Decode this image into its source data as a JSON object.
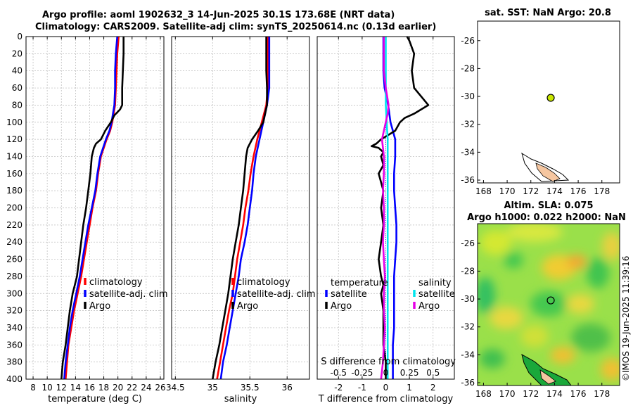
{
  "header": {
    "title_line1": "Argo profile: aoml 1902632_3 14-Jun-2025 30.1S 173.68E (NRT data)",
    "title_line2": "Climatology: CARS2009. Satellite-adj clim: synTS_20250614.nc (0.13d earlier)"
  },
  "colors": {
    "climatology": "#ff0000",
    "satellite": "#0000ff",
    "argo": "#000000",
    "sal_satellite": "#00e5ee",
    "sal_argo": "#e600e6",
    "grid": "#b8b8b8",
    "land": "#f5c6a0",
    "profile_marker": "#c8e600"
  },
  "depth_ticks": [
    0,
    20,
    40,
    60,
    80,
    100,
    120,
    140,
    160,
    180,
    200,
    220,
    240,
    260,
    280,
    300,
    320,
    340,
    360,
    380,
    400
  ],
  "chart_data": [
    {
      "type": "line",
      "id": "temperature",
      "xlabel": "temperature (deg C)",
      "ylabel": "",
      "xlim": [
        7,
        26.5
      ],
      "ylim": [
        400,
        0
      ],
      "xticks": [
        8,
        10,
        12,
        14,
        16,
        18,
        20,
        22,
        24,
        26
      ],
      "legend": [
        "climatology",
        "satellite-adj. clim",
        "Argo"
      ],
      "series": [
        {
          "name": "climatology",
          "color": "#ff0000",
          "depth": [
            0,
            20,
            40,
            60,
            80,
            100,
            110,
            120,
            140,
            160,
            180,
            200,
            220,
            240,
            260,
            280,
            300,
            320,
            340,
            360,
            380,
            400
          ],
          "values": [
            20.1,
            19.9,
            19.8,
            19.7,
            19.6,
            19.2,
            18.9,
            18.4,
            17.6,
            17.2,
            16.9,
            16.4,
            16.0,
            15.6,
            15.2,
            14.8,
            14.3,
            13.8,
            13.4,
            13.0,
            12.8,
            12.6
          ]
        },
        {
          "name": "satellite-adj. clim",
          "color": "#0000ff",
          "depth": [
            0,
            20,
            40,
            60,
            80,
            100,
            110,
            120,
            140,
            160,
            180,
            200,
            220,
            240,
            260,
            280,
            300,
            320,
            340,
            360,
            380,
            400
          ],
          "values": [
            19.9,
            19.7,
            19.6,
            19.6,
            19.5,
            19.1,
            18.8,
            18.3,
            17.5,
            17.1,
            16.8,
            16.3,
            15.8,
            15.4,
            15.0,
            14.6,
            14.1,
            13.6,
            13.2,
            12.9,
            12.6,
            12.4
          ]
        },
        {
          "name": "Argo",
          "color": "#000000",
          "depth": [
            0,
            20,
            40,
            60,
            80,
            85,
            92,
            100,
            110,
            120,
            125,
            130,
            140,
            160,
            180,
            200,
            220,
            240,
            260,
            280,
            290,
            300,
            320,
            340,
            360,
            380,
            400
          ],
          "values": [
            20.8,
            20.8,
            20.7,
            20.6,
            20.6,
            20.3,
            19.5,
            19.0,
            18.2,
            17.6,
            16.9,
            16.6,
            16.3,
            16.1,
            15.8,
            15.5,
            15.1,
            14.8,
            14.5,
            14.2,
            13.9,
            13.6,
            13.2,
            12.9,
            12.6,
            12.2,
            12.0
          ]
        }
      ]
    },
    {
      "type": "line",
      "id": "salinity",
      "xlabel": "salinity",
      "ylabel": "",
      "xlim": [
        34.45,
        36.3
      ],
      "ylim": [
        400,
        0
      ],
      "xticks": [
        34.5,
        35,
        35.5,
        36
      ],
      "xticklabels": [
        "34.5",
        "35",
        "35.5",
        "36"
      ],
      "legend": [
        "climatology",
        "satellite-adj. clim",
        "Argo"
      ],
      "series": [
        {
          "name": "climatology",
          "color": "#ff0000",
          "depth": [
            0,
            20,
            40,
            60,
            80,
            100,
            120,
            140,
            160,
            180,
            200,
            220,
            240,
            260,
            280,
            300,
            320,
            340,
            360,
            380,
            400
          ],
          "values": [
            35.74,
            35.74,
            35.74,
            35.74,
            35.72,
            35.66,
            35.6,
            35.55,
            35.51,
            35.48,
            35.44,
            35.41,
            35.37,
            35.33,
            35.3,
            35.27,
            35.22,
            35.18,
            35.14,
            35.1,
            35.06
          ]
        },
        {
          "name": "satellite-adj. clim",
          "color": "#0000ff",
          "depth": [
            0,
            20,
            40,
            60,
            80,
            100,
            120,
            140,
            160,
            180,
            200,
            220,
            240,
            260,
            280,
            300,
            320,
            340,
            360,
            380,
            400
          ],
          "values": [
            35.76,
            35.76,
            35.76,
            35.76,
            35.73,
            35.68,
            35.63,
            35.58,
            35.55,
            35.53,
            35.5,
            35.47,
            35.43,
            35.38,
            35.35,
            35.31,
            35.27,
            35.23,
            35.19,
            35.14,
            35.11
          ]
        },
        {
          "name": "Argo",
          "color": "#000000",
          "depth": [
            0,
            20,
            40,
            60,
            80,
            100,
            110,
            120,
            130,
            140,
            160,
            180,
            200,
            220,
            240,
            260,
            280,
            300,
            320,
            340,
            360,
            380,
            400
          ],
          "values": [
            35.72,
            35.72,
            35.72,
            35.73,
            35.73,
            35.68,
            35.61,
            35.53,
            35.47,
            35.45,
            35.43,
            35.41,
            35.38,
            35.35,
            35.31,
            35.27,
            35.24,
            35.21,
            35.17,
            35.13,
            35.09,
            35.04,
            35.0
          ]
        }
      ]
    },
    {
      "type": "line",
      "id": "difference",
      "xlabel": "T difference from climatology",
      "xlabel_top": "S difference from climatology",
      "xlim": [
        -2.9,
        2.9
      ],
      "ylim": [
        400,
        0
      ],
      "xticks": [
        -2,
        -1,
        0,
        1,
        2
      ],
      "s_ticks": [
        -0.5,
        -0.25,
        0,
        0.25,
        0.5
      ],
      "s_ticklabels": [
        "-0.5",
        "-0.25",
        "0",
        "0.25",
        "0.5"
      ],
      "s_scale": 4,
      "legend_left_title": "temperature",
      "legend_right_title": "salinity",
      "legend_left": [
        "satellite",
        "Argo"
      ],
      "legend_right": [
        "satellite",
        "Argo"
      ],
      "series": [
        {
          "name": "T satellite",
          "color": "#0000ff",
          "depth": [
            0,
            40,
            60,
            80,
            100,
            110,
            120,
            140,
            160,
            180,
            200,
            220,
            240,
            260,
            280,
            300,
            320,
            340,
            360,
            380,
            400
          ],
          "values": [
            -0.1,
            -0.1,
            -0.05,
            0.1,
            0.2,
            0.3,
            0.4,
            0.4,
            0.35,
            0.35,
            0.4,
            0.45,
            0.45,
            0.4,
            0.35,
            0.35,
            0.35,
            0.35,
            0.3,
            0.3,
            0.3
          ]
        },
        {
          "name": "T Argo",
          "color": "#000000",
          "depth": [
            0,
            5,
            20,
            40,
            60,
            70,
            80,
            90,
            95,
            100,
            110,
            115,
            120,
            125,
            128,
            130,
            135,
            140,
            150,
            160,
            180,
            200,
            220,
            240,
            260,
            280,
            290,
            300,
            320,
            340,
            360,
            380,
            400
          ],
          "values": [
            0.9,
            1.0,
            1.2,
            1.1,
            1.2,
            1.5,
            1.8,
            1.2,
            0.8,
            0.6,
            0.4,
            0.1,
            -0.2,
            -0.4,
            -0.6,
            -0.3,
            -0.1,
            -0.2,
            -0.1,
            -0.3,
            -0.1,
            -0.2,
            -0.1,
            -0.2,
            -0.3,
            -0.2,
            -0.1,
            -0.2,
            -0.1,
            -0.1,
            -0.1,
            0.0,
            0.0
          ]
        },
        {
          "name": "S satellite",
          "color": "#00e5ee",
          "depth": [
            0,
            40,
            80,
            100,
            120,
            140,
            160,
            180,
            200,
            220,
            240,
            260,
            280,
            300,
            320,
            340,
            360,
            380,
            400
          ],
          "values": [
            0.0,
            0.0,
            0.0,
            0.01,
            0.02,
            0.02,
            0.02,
            0.02,
            0.02,
            0.02,
            0.02,
            0.02,
            0.02,
            0.02,
            0.02,
            0.02,
            0.02,
            0.02,
            0.02
          ]
        },
        {
          "name": "S Argo",
          "color": "#e600e6",
          "depth": [
            0,
            20,
            40,
            60,
            80,
            90,
            100,
            110,
            120,
            130,
            140,
            160,
            180,
            200,
            220,
            240,
            260,
            280,
            300,
            320,
            340,
            360,
            380,
            400
          ],
          "values": [
            -0.02,
            -0.02,
            -0.02,
            0.0,
            0.03,
            0.02,
            0.0,
            -0.02,
            -0.04,
            -0.03,
            -0.02,
            -0.02,
            -0.03,
            -0.02,
            -0.02,
            -0.03,
            -0.02,
            -0.01,
            -0.02,
            -0.02,
            -0.01,
            -0.02,
            -0.03,
            -0.05
          ]
        }
      ]
    },
    {
      "type": "scatter",
      "id": "sst_map",
      "title": "sat. SST: NaN Argo: 20.8",
      "xlim": [
        167.5,
        179.5
      ],
      "ylim": [
        -36.2,
        -24.6
      ],
      "xticks": [
        168,
        170,
        172,
        174,
        176,
        178
      ],
      "yticks": [
        -26,
        -28,
        -30,
        -32,
        -34,
        -36
      ],
      "points": [
        {
          "lon": 173.68,
          "lat": -30.1
        }
      ]
    },
    {
      "type": "heatmap",
      "id": "sla_map",
      "title": "Altim. SLA: 0.075",
      "subtitle": "Argo h1000: 0.022 h2000: NaN",
      "xlim": [
        167.5,
        179.5
      ],
      "ylim": [
        -36.2,
        -24.6
      ],
      "xticks": [
        168,
        170,
        172,
        174,
        176,
        178
      ],
      "yticks": [
        -26,
        -28,
        -30,
        -32,
        -34,
        -36
      ],
      "points": [
        {
          "lon": 173.68,
          "lat": -30.1
        }
      ]
    }
  ],
  "footer": {
    "stamp": "©IMOS 19-Jun-2025 11:39:16"
  }
}
